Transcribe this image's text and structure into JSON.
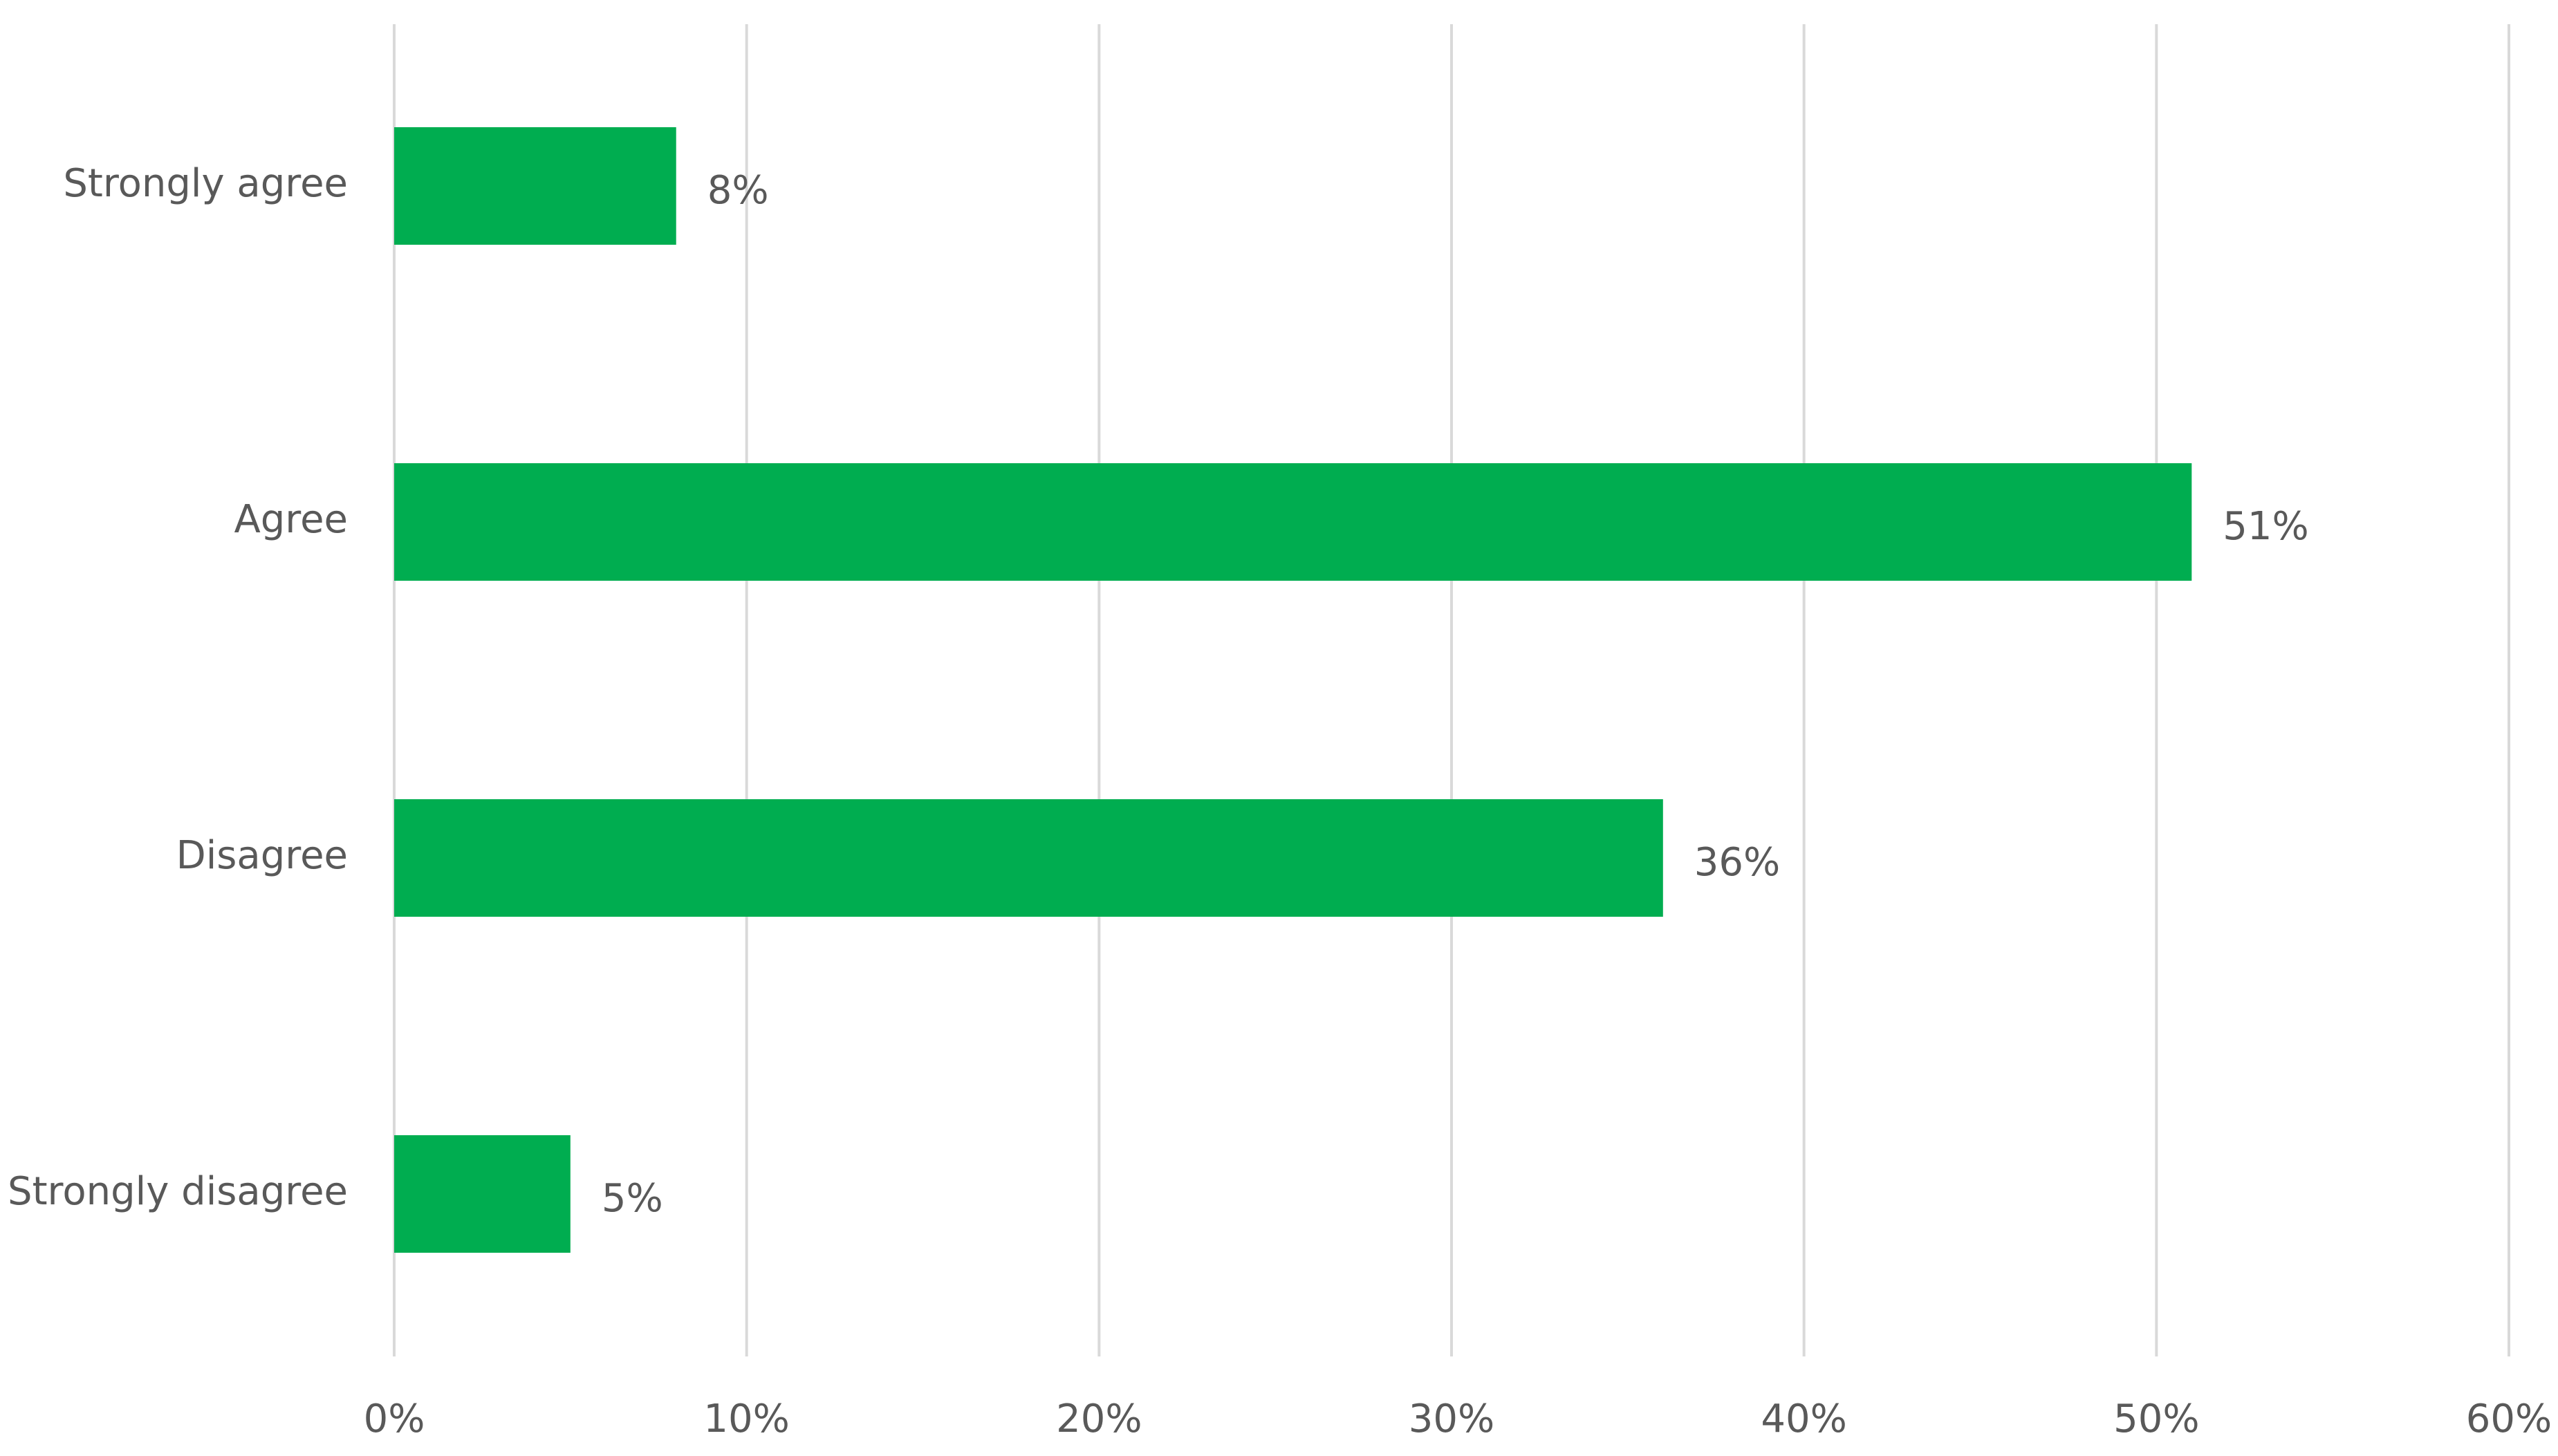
{
  "chart_data": {
    "type": "bar",
    "orientation": "horizontal",
    "categories": [
      "Strongly agree",
      "Agree",
      "Disagree",
      "Strongly disagree"
    ],
    "values": [
      8,
      51,
      36,
      5
    ],
    "value_labels": [
      "8%",
      "51%",
      "36%",
      "5%"
    ],
    "color": "#00ad50",
    "xlim": [
      0,
      60
    ],
    "xticks": [
      {
        "value": 0,
        "label": "0%"
      },
      {
        "value": 10,
        "label": "10%"
      },
      {
        "value": 20,
        "label": "20%"
      },
      {
        "value": 30,
        "label": "30%"
      },
      {
        "value": 40,
        "label": "40%"
      },
      {
        "value": 50,
        "label": "50%"
      },
      {
        "value": 60,
        "label": "60%"
      }
    ],
    "grid": true
  }
}
